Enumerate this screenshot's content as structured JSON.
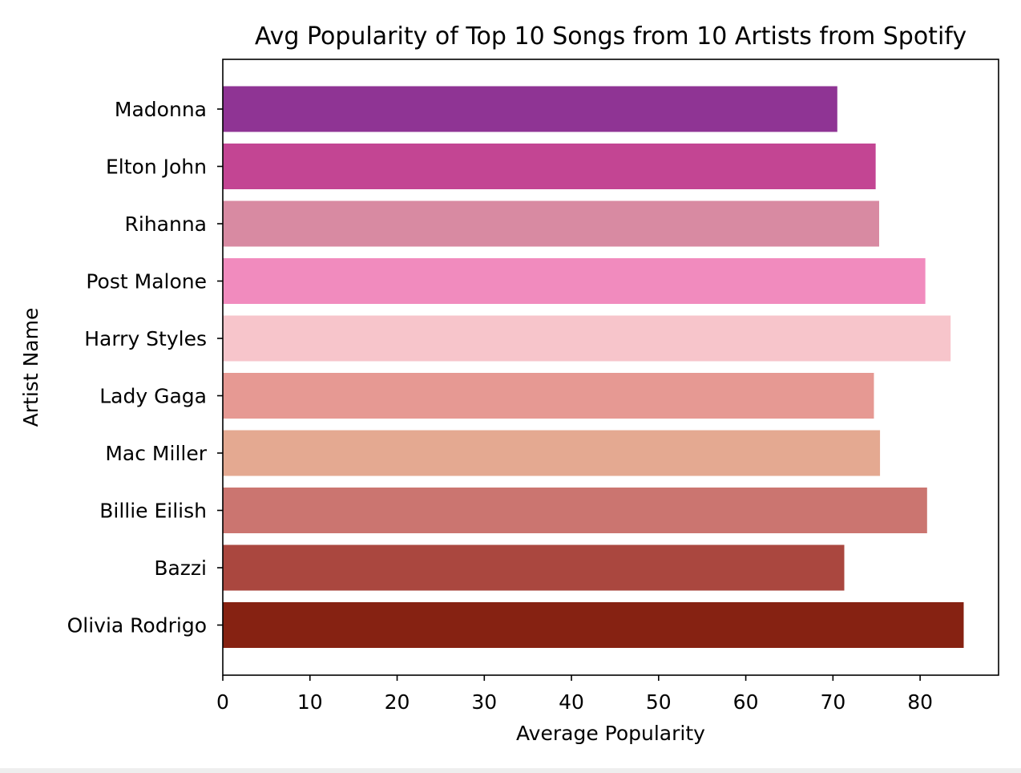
{
  "chart_data": {
    "type": "bar",
    "orientation": "horizontal",
    "title": "Avg Popularity of Top 10 Songs from 10 Artists from Spotify",
    "xlabel": "Average Popularity",
    "ylabel": "Artist Name",
    "xlim": [
      0,
      89
    ],
    "x_ticks": [
      0,
      10,
      20,
      30,
      40,
      50,
      60,
      70,
      80
    ],
    "categories": [
      "Madonna",
      "Elton John",
      "Rihanna",
      "Post Malone",
      "Harry Styles",
      "Lady Gaga",
      "Mac Miller",
      "Billie Eilish",
      "Bazzi",
      "Olivia Rodrigo"
    ],
    "values": [
      70.5,
      74.9,
      75.3,
      80.6,
      83.5,
      74.7,
      75.4,
      80.8,
      71.3,
      85.0
    ],
    "colors": [
      "#8f3494",
      "#c34593",
      "#d88aa2",
      "#f18bbe",
      "#f7c5cb",
      "#e69993",
      "#e4a991",
      "#cb7570",
      "#aa473f",
      "#862212"
    ],
    "grid": false,
    "legend": "none"
  }
}
